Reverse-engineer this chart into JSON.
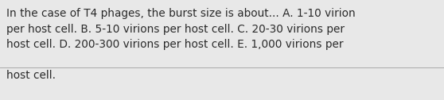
{
  "text_line1": "In the case of T4 phages, the burst size is about... A. 1-10 virion",
  "text_line2": "per host cell. B. 5-10 virions per host cell. C. 20-30 virions per",
  "text_line3": "host cell. D. 200-300 virions per host cell. E. 1,000 virions per",
  "text_line4": "host cell.",
  "background_color": "#e8e8e8",
  "text_color": "#2a2a2a",
  "font_size": 9.8,
  "line_color": "#aaaaaa"
}
